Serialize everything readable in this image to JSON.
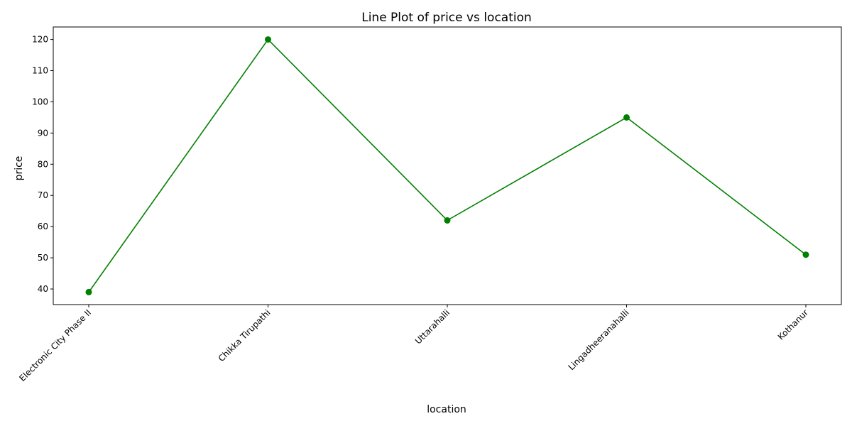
{
  "chart_data": {
    "type": "line",
    "title": "Line Plot of price vs location",
    "xlabel": "location",
    "ylabel": "price",
    "categories": [
      "Electronic City Phase II",
      "Chikka Tirupathi",
      "Uttarahalli",
      "Lingadheeranahalli",
      "Kothanur"
    ],
    "values": [
      39,
      120,
      62,
      95,
      51
    ],
    "ylim": [
      35,
      124
    ],
    "yticks": [
      40,
      50,
      60,
      70,
      80,
      90,
      100,
      110,
      120
    ],
    "grid": false,
    "line_color": "#008000",
    "marker": "circle",
    "xtick_rotation": 45
  }
}
